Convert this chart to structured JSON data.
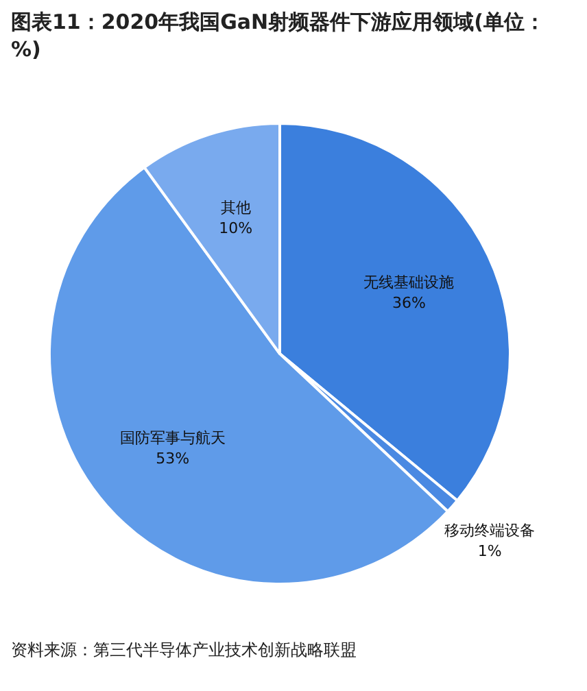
{
  "chart_data": {
    "type": "pie",
    "title": "图表11：2020年我国GaN射频器件下游应用领域(单位：%)",
    "categories": [
      "无线基础设施",
      "移动终端设备",
      "国防军事与航天",
      "其他"
    ],
    "values": [
      36,
      1,
      53,
      10
    ],
    "value_labels": [
      "36%",
      "1%",
      "53%",
      "10%"
    ],
    "colors": [
      "#3b7fdd",
      "#4a89e2",
      "#5f9be9",
      "#79aaee"
    ],
    "annotations": [
      "资料来源：第三代半导体产业技术创新战略联盟"
    ]
  }
}
